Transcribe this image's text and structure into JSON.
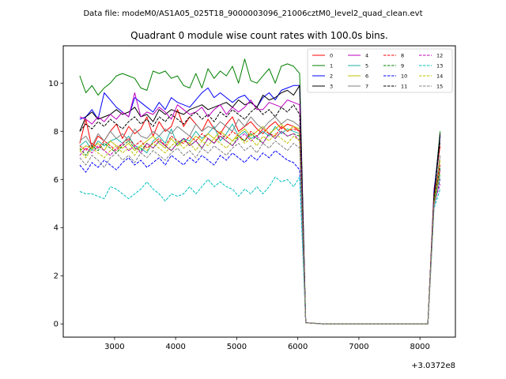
{
  "chart_data": {
    "type": "line",
    "suptitle": "Data file: modeM0/AS1A05_025T18_9000003096_21006cztM0_level2_quad_clean.evt",
    "title": "Quadrant 0 module wise count rates with 100.0s bins.",
    "xlabel": "",
    "ylabel": "",
    "x_offset_label": "+3.0372e8",
    "xlim": [
      2160,
      8580
    ],
    "ylim": [
      -0.55,
      11.55
    ],
    "xticks": [
      3000,
      4000,
      5000,
      6000,
      7000,
      8000
    ],
    "xtick_labels": [
      "3000",
      "4000",
      "5000",
      "6000",
      "7000",
      "8000"
    ],
    "yticks": [
      0,
      2,
      4,
      6,
      8,
      10
    ],
    "ytick_labels": [
      "0",
      "2",
      "4",
      "6",
      "8",
      "10"
    ],
    "grid": false,
    "legend_placement": "top-right",
    "legend_columns": 4,
    "x_start": 2430,
    "x_step": 100,
    "gap_x_start": 6330,
    "gap_x_end": 8130,
    "gap_value": 0.0,
    "series": [
      {
        "name": "0",
        "color": "#ff0000",
        "dash": "solid",
        "values": [
          7.5,
          8.5,
          7.3,
          7.8,
          7.6,
          8.0,
          8.3,
          7.7,
          8.2,
          7.9,
          8.1,
          8.6,
          7.8,
          8.4,
          8.0,
          8.2,
          8.9,
          8.2,
          8.6,
          8.3,
          8.0,
          8.5,
          8.1,
          7.9,
          8.3,
          8.6,
          8.0,
          8.2,
          8.4,
          8.1,
          7.9,
          8.2,
          8.4,
          8.1,
          8.3,
          8.2,
          8.0,
          0.05
        ],
        "end": [
          5.6,
          7.4
        ]
      },
      {
        "name": "1",
        "color": "#008000",
        "dash": "solid",
        "values": [
          10.3,
          9.6,
          9.9,
          9.5,
          9.8,
          10.0,
          10.3,
          10.4,
          10.3,
          10.2,
          9.8,
          9.7,
          10.5,
          10.4,
          10.5,
          10.2,
          10.3,
          9.9,
          9.8,
          10.4,
          9.8,
          10.6,
          10.2,
          10.5,
          10.3,
          10.7,
          10.0,
          11.0,
          10.1,
          10.0,
          10.3,
          10.6,
          10.0,
          10.7,
          10.8,
          10.7,
          10.4,
          0.05
        ],
        "end": [
          5.4,
          8.0
        ]
      },
      {
        "name": "2",
        "color": "#0000ff",
        "dash": "solid",
        "values": [
          8.5,
          8.6,
          8.9,
          8.5,
          9.6,
          9.3,
          9.0,
          8.8,
          8.6,
          9.4,
          9.2,
          9.0,
          8.8,
          9.2,
          8.9,
          9.4,
          9.2,
          9.1,
          9.0,
          9.3,
          9.6,
          9.8,
          9.4,
          9.6,
          9.4,
          9.2,
          9.4,
          9.5,
          9.2,
          9.0,
          9.4,
          9.6,
          9.3,
          9.7,
          9.8,
          9.9,
          9.9,
          0.05
        ],
        "end": [
          5.5,
          7.8
        ]
      },
      {
        "name": "3",
        "color": "#000000",
        "dash": "solid",
        "values": [
          8.0,
          8.6,
          8.8,
          8.5,
          8.6,
          8.7,
          8.9,
          8.7,
          8.8,
          9.0,
          8.6,
          8.7,
          8.4,
          8.9,
          8.7,
          8.9,
          8.8,
          8.7,
          8.9,
          9.0,
          9.1,
          8.9,
          9.0,
          9.1,
          9.2,
          9.0,
          9.3,
          9.1,
          9.2,
          9.0,
          9.5,
          9.3,
          9.4,
          9.6,
          9.7,
          9.5,
          9.9,
          0.05
        ],
        "end": [
          5.3,
          7.9
        ]
      },
      {
        "name": "4",
        "color": "#bf00bf",
        "dash": "solid",
        "values": [
          8.6,
          8.5,
          8.3,
          8.6,
          8.4,
          8.7,
          8.5,
          8.8,
          8.6,
          9.6,
          8.6,
          8.8,
          8.7,
          9.0,
          8.8,
          8.5,
          9.1,
          8.9,
          8.7,
          8.8,
          9.0,
          8.6,
          8.9,
          9.1,
          8.7,
          9.0,
          8.8,
          9.0,
          9.3,
          8.9,
          8.9,
          9.2,
          9.1,
          9.0,
          9.3,
          9.2,
          9.1,
          0.05
        ],
        "end": [
          5.2,
          6.4
        ]
      },
      {
        "name": "5",
        "color": "#20b2aa",
        "dash": "solid",
        "values": [
          7.4,
          7.6,
          7.2,
          7.6,
          7.4,
          7.6,
          7.7,
          7.5,
          7.8,
          7.4,
          7.3,
          7.1,
          7.6,
          7.8,
          7.5,
          8.1,
          7.4,
          7.7,
          7.6,
          8.0,
          7.7,
          7.9,
          8.2,
          7.6,
          7.9,
          8.3,
          7.8,
          8.0,
          7.7,
          7.8,
          8.0,
          7.8,
          8.2,
          7.9,
          8.1,
          8.0,
          7.9,
          0.05
        ],
        "end": [
          5.0,
          6.2
        ]
      },
      {
        "name": "6",
        "color": "#bfbf00",
        "dash": "solid",
        "values": [
          7.2,
          7.4,
          7.3,
          7.5,
          7.2,
          7.6,
          7.4,
          7.3,
          7.5,
          7.2,
          7.4,
          7.6,
          7.8,
          7.5,
          7.3,
          7.7,
          7.4,
          7.6,
          7.5,
          7.8,
          7.6,
          7.9,
          7.7,
          8.0,
          7.8,
          7.6,
          7.9,
          8.1,
          7.8,
          8.0,
          8.2,
          7.9,
          8.1,
          8.3,
          8.0,
          8.2,
          8.1,
          0.05
        ],
        "end": [
          5.1,
          6.8
        ]
      },
      {
        "name": "7",
        "color": "#808080",
        "dash": "solid",
        "values": [
          7.6,
          7.8,
          7.4,
          7.9,
          7.6,
          8.0,
          7.7,
          7.9,
          7.6,
          8.1,
          7.8,
          7.7,
          8.0,
          7.8,
          8.1,
          7.9,
          8.2,
          8.0,
          7.8,
          8.3,
          8.0,
          8.2,
          8.1,
          8.4,
          8.2,
          8.0,
          8.5,
          8.2,
          8.6,
          8.3,
          8.1,
          8.4,
          8.6,
          8.3,
          8.5,
          8.4,
          8.2,
          0.05
        ],
        "end": [
          5.2,
          7.0
        ]
      },
      {
        "name": "8",
        "color": "#ff0000",
        "dash": "dashed",
        "values": [
          7.4,
          7.2,
          7.5,
          7.3,
          7.6,
          7.4,
          7.2,
          7.5,
          7.7,
          7.4,
          7.6,
          7.3,
          7.5,
          7.7,
          7.4,
          7.8,
          7.6,
          7.5,
          7.8,
          7.6,
          7.9,
          7.7,
          7.5,
          7.9,
          7.7,
          8.0,
          7.8,
          7.6,
          8.0,
          7.8,
          8.1,
          7.9,
          7.8,
          8.2,
          8.0,
          8.1,
          8.0,
          0.05
        ],
        "end": [
          5.3,
          6.6
        ]
      },
      {
        "name": "9",
        "color": "#008000",
        "dash": "dashed",
        "values": [
          7.3,
          7.0,
          7.4,
          7.2,
          7.5,
          7.3,
          7.1,
          7.4,
          7.6,
          7.3,
          7.2,
          7.5,
          7.3,
          7.6,
          7.4,
          7.2,
          7.5,
          7.7,
          7.4,
          7.6,
          7.3,
          7.7,
          7.5,
          7.8,
          7.6,
          7.4,
          7.8,
          7.6,
          7.9,
          7.7,
          7.5,
          7.9,
          7.7,
          8.0,
          7.8,
          7.9,
          7.8,
          0.05
        ],
        "end": [
          5.1,
          6.5
        ]
      },
      {
        "name": "10",
        "color": "#0000ff",
        "dash": "dashed",
        "values": [
          6.6,
          6.3,
          6.7,
          6.5,
          6.8,
          6.6,
          6.4,
          6.7,
          6.9,
          6.6,
          6.8,
          6.5,
          6.7,
          6.9,
          6.6,
          7.0,
          6.8,
          6.6,
          6.9,
          6.7,
          7.0,
          6.8,
          6.6,
          7.0,
          6.8,
          7.1,
          6.9,
          6.7,
          7.0,
          6.8,
          7.1,
          6.9,
          7.2,
          7.0,
          6.8,
          6.7,
          6.4,
          0.05
        ],
        "end": [
          4.9,
          6.0
        ]
      },
      {
        "name": "11",
        "color": "#000000",
        "dash": "dashed",
        "values": [
          8.0,
          8.3,
          8.1,
          8.4,
          8.2,
          8.5,
          8.3,
          8.1,
          8.4,
          8.6,
          8.3,
          8.5,
          8.2,
          8.6,
          8.4,
          8.7,
          8.5,
          8.3,
          8.6,
          8.8,
          8.5,
          8.7,
          8.4,
          8.8,
          8.6,
          8.9,
          8.7,
          8.5,
          8.8,
          9.0,
          8.7,
          8.9,
          8.6,
          9.0,
          8.8,
          9.1,
          8.7,
          0.05
        ],
        "end": [
          5.3,
          7.6
        ]
      },
      {
        "name": "12",
        "color": "#bf00bf",
        "dash": "dashed",
        "values": [
          7.0,
          7.3,
          7.1,
          7.4,
          7.2,
          7.0,
          7.3,
          7.5,
          7.2,
          7.4,
          7.1,
          7.5,
          7.3,
          7.6,
          7.4,
          7.2,
          7.5,
          7.7,
          7.4,
          7.6,
          7.3,
          7.7,
          7.5,
          7.8,
          7.6,
          7.4,
          7.7,
          7.9,
          7.6,
          7.8,
          7.5,
          7.9,
          7.7,
          8.0,
          7.8,
          7.9,
          7.6,
          0.05
        ],
        "end": [
          5.0,
          5.8
        ]
      },
      {
        "name": "13",
        "color": "#00bfbf",
        "dash": "dashed",
        "values": [
          5.5,
          5.4,
          5.4,
          5.3,
          5.2,
          5.7,
          5.6,
          5.4,
          5.2,
          5.4,
          5.6,
          5.9,
          5.6,
          5.4,
          5.1,
          5.4,
          5.3,
          5.4,
          5.7,
          5.4,
          5.7,
          6.0,
          5.7,
          5.9,
          5.7,
          5.6,
          5.3,
          5.6,
          5.4,
          5.7,
          5.4,
          5.7,
          6.1,
          5.9,
          6.0,
          5.7,
          6.1,
          0.05
        ],
        "end": [
          4.8,
          5.6
        ]
      },
      {
        "name": "14",
        "color": "#bfbf00",
        "dash": "dashed",
        "values": [
          7.2,
          6.9,
          7.3,
          7.1,
          6.9,
          7.2,
          7.4,
          7.1,
          7.3,
          7.0,
          7.4,
          7.2,
          7.5,
          7.3,
          7.1,
          7.4,
          7.6,
          7.3,
          7.5,
          7.2,
          7.6,
          7.4,
          7.7,
          7.5,
          7.3,
          7.6,
          7.8,
          7.5,
          7.7,
          7.4,
          7.8,
          7.6,
          7.9,
          7.7,
          7.5,
          7.8,
          7.6,
          0.05
        ],
        "end": [
          5.0,
          6.3
        ]
      },
      {
        "name": "15",
        "color": "#808080",
        "dash": "dashed",
        "values": [
          6.9,
          6.6,
          7.0,
          6.8,
          6.5,
          6.9,
          7.1,
          6.8,
          7.0,
          6.7,
          7.1,
          6.9,
          7.2,
          7.0,
          6.8,
          7.1,
          7.3,
          7.0,
          7.2,
          6.9,
          7.3,
          7.1,
          7.4,
          7.2,
          7.0,
          7.3,
          7.5,
          7.2,
          7.4,
          7.1,
          7.5,
          7.3,
          7.6,
          7.4,
          7.2,
          7.5,
          7.3,
          0.05
        ],
        "end": [
          4.9,
          6.1
        ]
      }
    ]
  }
}
